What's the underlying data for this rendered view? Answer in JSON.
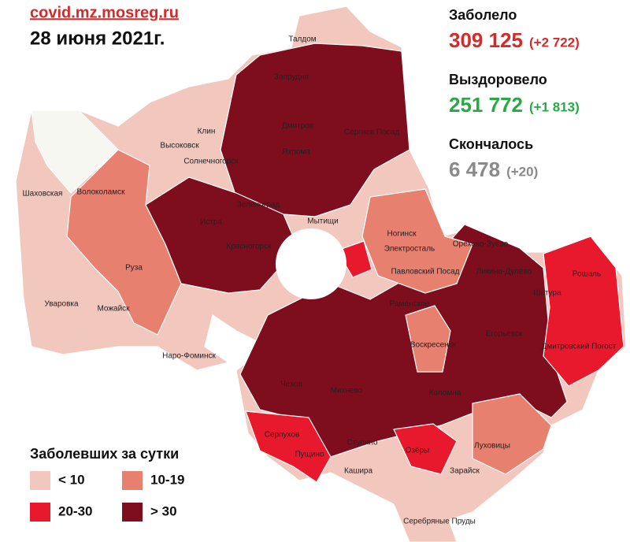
{
  "header": {
    "site": "covid.mz.mosreg.ru",
    "date": "28 июня 2021г."
  },
  "stats": [
    {
      "label": "Заболело",
      "value": "309 125",
      "delta": "(+2 722)",
      "color": "#d42a2a"
    },
    {
      "label": "Выздоровело",
      "value": "251 772",
      "delta": "(+1 813)",
      "color": "#2aa845"
    },
    {
      "label": "Скончалось",
      "value": "6 478",
      "delta": "(+20)",
      "color": "#8a8a8a"
    }
  ],
  "legend": {
    "title": "Заболевших за сутки",
    "items": [
      {
        "label": "< 10",
        "color": "#f2c7be"
      },
      {
        "label": "10-19",
        "color": "#e7806f"
      },
      {
        "label": "20-30",
        "color": "#e8192c"
      },
      {
        "label": "> 30",
        "color": "#7e0e1e"
      }
    ]
  },
  "map": {
    "labels": [
      "Талдом",
      "Запрудня",
      "Дмитров",
      "Сергиев Посад",
      "Яхрома",
      "Клин",
      "Высоковск",
      "Солнечногорск",
      "Шаховская",
      "Волоколамск",
      "Зеленоград",
      "Истра",
      "Мытищи",
      "Ногинск",
      "Электросталь",
      "Красногорск",
      "Орехово-Зуево",
      "Павловский Посад",
      "Ликино-Дулёво",
      "Руза",
      "Рошаль",
      "Шатура",
      "Раменское",
      "Уваровка",
      "Можайск",
      "Наро-Фоминск",
      "Воскресенск",
      "Егорьевск",
      "Дмитровский Погост",
      "Чехов",
      "Михнево",
      "Коломна",
      "Серпухов",
      "Ступино",
      "Луховицы",
      "Пущино",
      "Озёры",
      "Кашира",
      "Зарайск",
      "Серебряные Пруды"
    ]
  }
}
